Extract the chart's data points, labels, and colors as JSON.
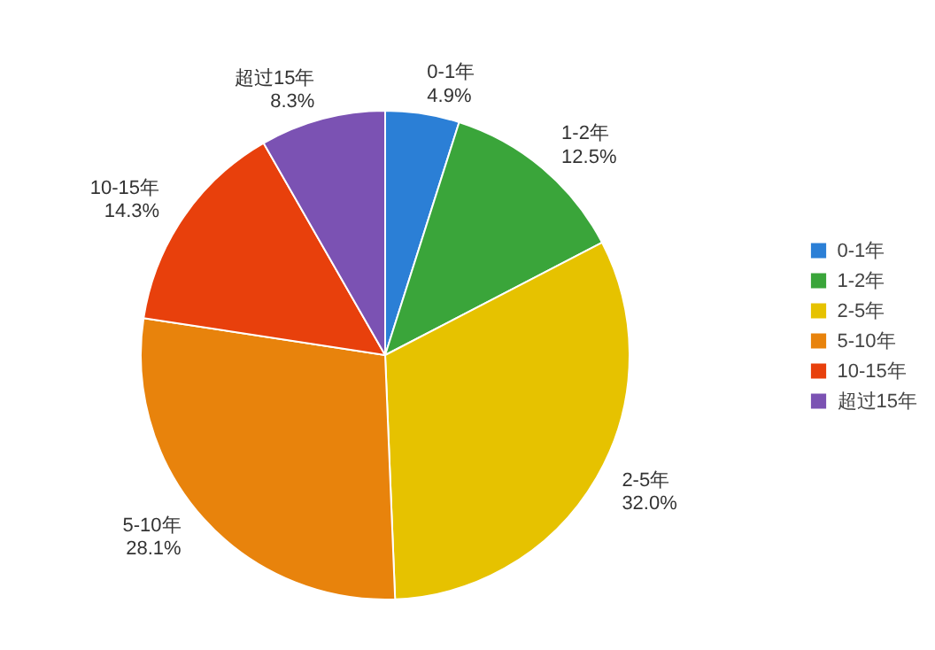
{
  "chart_data": {
    "type": "pie",
    "categories": [
      "0-1年",
      "1-2年",
      "2-5年",
      "5-10年",
      "10-15年",
      "超过15年"
    ],
    "values": [
      4.9,
      12.5,
      32.0,
      28.1,
      14.3,
      8.3
    ],
    "colors": [
      "#2b7fd6",
      "#3aa53a",
      "#e6c200",
      "#e8830c",
      "#e8400c",
      "#7b52b3"
    ],
    "value_labels": [
      "4.9%",
      "12.5%",
      "32.0%",
      "28.1%",
      "14.3%",
      "8.3%"
    ],
    "legend": "right"
  }
}
